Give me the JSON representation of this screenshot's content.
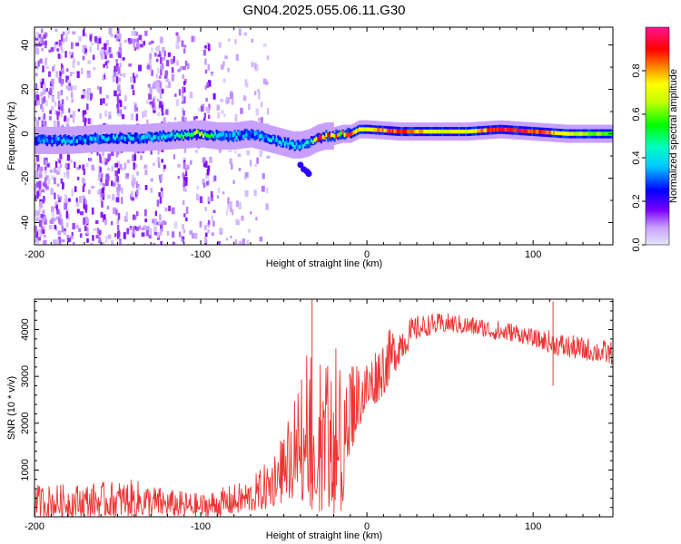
{
  "title": "GN04.2025.055.06.11.G30",
  "chart_data": [
    {
      "type": "heatmap",
      "name": "spectrogram",
      "xlabel": "Height of straight line (km)",
      "ylabel": "Frequency (Hz)",
      "xlim": [
        -200,
        148
      ],
      "ylim": [
        -50,
        48
      ],
      "xticks": [
        -200,
        -100,
        0,
        100
      ],
      "yticks": [
        -40,
        -20,
        0,
        20,
        40
      ],
      "colorbar": {
        "label": "Normalized spectral amplitude",
        "range": [
          0,
          1
        ],
        "ticks": [
          0,
          0.2,
          0.4,
          0.6,
          0.8
        ],
        "tick_labels": [
          "0.0",
          "0.2",
          "0.4",
          "0.6",
          "0.8"
        ],
        "colormap": [
          "#e6e6fa",
          "#7a00ff",
          "#0000ff",
          "#00ffff",
          "#00ff00",
          "#ffff00",
          "#ff0000",
          "#ff1493"
        ]
      },
      "ridge": {
        "x": [
          -200,
          -180,
          -160,
          -140,
          -120,
          -100,
          -90,
          -80,
          -70,
          -60,
          -50,
          -45,
          -40,
          -35,
          -30,
          -25,
          -20,
          -15,
          -10,
          -5,
          0,
          20,
          40,
          60,
          80,
          100,
          120,
          148
        ],
        "frequency": [
          -3,
          -3,
          -2,
          -2,
          -1,
          0,
          -1,
          -1,
          0,
          -2,
          -4,
          -5,
          -5,
          -4,
          -2,
          -1,
          -1,
          0,
          0,
          2,
          2,
          1,
          1,
          1,
          2,
          1,
          0,
          0
        ],
        "peak_amplitude": [
          0.35,
          0.45,
          0.45,
          0.45,
          0.5,
          0.75,
          0.45,
          0.45,
          0.4,
          0.5,
          0.5,
          0.45,
          0.45,
          0.55,
          0.95,
          0.95,
          0.95,
          0.95,
          0.95,
          0.75,
          0.8,
          0.95,
          0.75,
          0.75,
          0.98,
          0.95,
          0.75,
          0.6
        ]
      }
    },
    {
      "type": "line",
      "name": "snr",
      "xlabel": "Height of straight line (km)",
      "ylabel": "SNR (10 * v/v)",
      "xlim": [
        -200,
        148
      ],
      "ylim": [
        0,
        4650
      ],
      "xticks": [
        -200,
        -100,
        0,
        100
      ],
      "yticks": [
        1000,
        2000,
        3000,
        4000
      ],
      "color": "#ee3333",
      "envelope": {
        "x": [
          -200,
          -180,
          -160,
          -140,
          -120,
          -100,
          -90,
          -80,
          -70,
          -60,
          -50,
          -45,
          -40,
          -35,
          -30,
          -25,
          -20,
          -15,
          -10,
          -5,
          0,
          10,
          20,
          30,
          40,
          50,
          60,
          70,
          80,
          90,
          100,
          110,
          120,
          130,
          140,
          148
        ],
        "min": [
          0,
          0,
          0,
          0,
          0,
          0,
          0,
          50,
          100,
          150,
          300,
          300,
          400,
          200,
          100,
          100,
          50,
          100,
          1300,
          1900,
          2200,
          2600,
          3300,
          3800,
          3900,
          3950,
          3900,
          3850,
          3750,
          3750,
          3650,
          3500,
          3400,
          3350,
          3300,
          3250
        ],
        "max": [
          700,
          700,
          750,
          800,
          600,
          500,
          600,
          700,
          800,
          1200,
          1800,
          2300,
          2900,
          4600,
          3300,
          3600,
          3800,
          3600,
          3600,
          3300,
          3400,
          3900,
          4200,
          4300,
          4350,
          4350,
          4300,
          4250,
          4200,
          4150,
          4000,
          4000,
          3900,
          3850,
          3800,
          3750
        ]
      },
      "spikes": [
        {
          "x": -33,
          "y": 4650
        },
        {
          "x": 112,
          "y": 4600
        },
        {
          "x": 112,
          "y": 2800
        }
      ]
    }
  ]
}
